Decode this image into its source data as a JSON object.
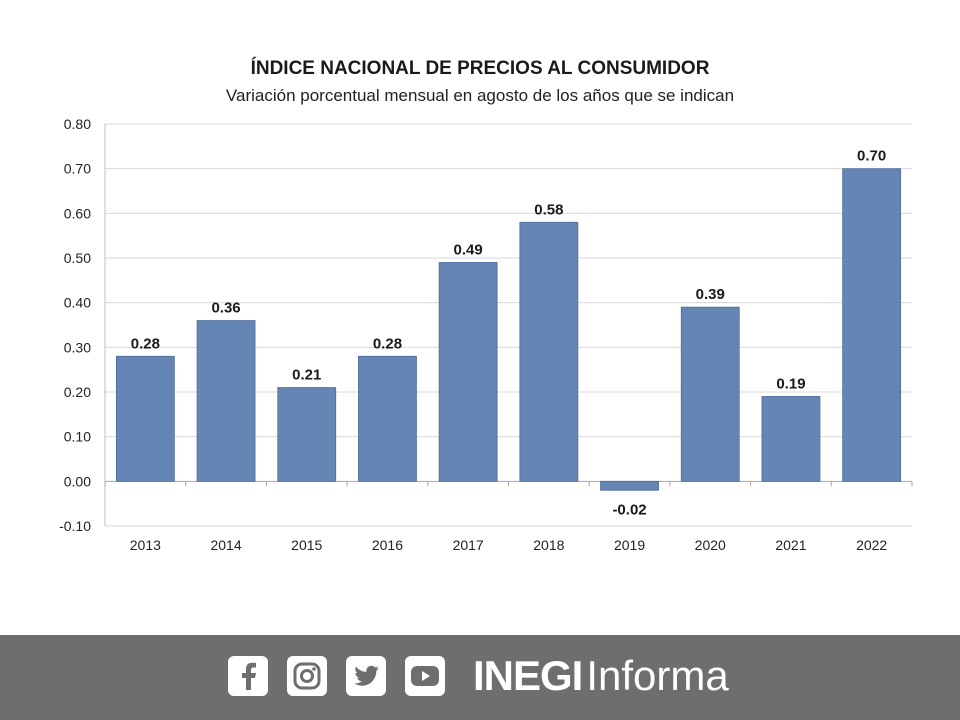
{
  "chart_data": {
    "type": "bar",
    "title": "ÍNDICE NACIONAL DE PRECIOS AL CONSUMIDOR",
    "subtitle": "Variación porcentual mensual en agosto de los años que se indican",
    "categories": [
      "2013",
      "2014",
      "2015",
      "2016",
      "2017",
      "2018",
      "2019",
      "2020",
      "2021",
      "2022"
    ],
    "values": [
      0.28,
      0.36,
      0.21,
      0.28,
      0.49,
      0.58,
      -0.02,
      0.39,
      0.19,
      0.7
    ],
    "data_labels": [
      "0.28",
      "0.36",
      "0.21",
      "0.28",
      "0.49",
      "0.58",
      "-0.02",
      "0.39",
      "0.19",
      "0.70"
    ],
    "ylim": [
      -0.1,
      0.8
    ],
    "yticks": [
      "-0.10",
      "0.00",
      "0.10",
      "0.20",
      "0.30",
      "0.40",
      "0.50",
      "0.60",
      "0.70",
      "0.80"
    ],
    "grid": true,
    "bar_color": "#6585b5"
  },
  "footer": {
    "brand_bold": "INEGI",
    "brand_light": "Informa",
    "icons": [
      "facebook-icon",
      "instagram-icon",
      "twitter-icon",
      "youtube-icon"
    ],
    "background": "#6e6e6e"
  }
}
